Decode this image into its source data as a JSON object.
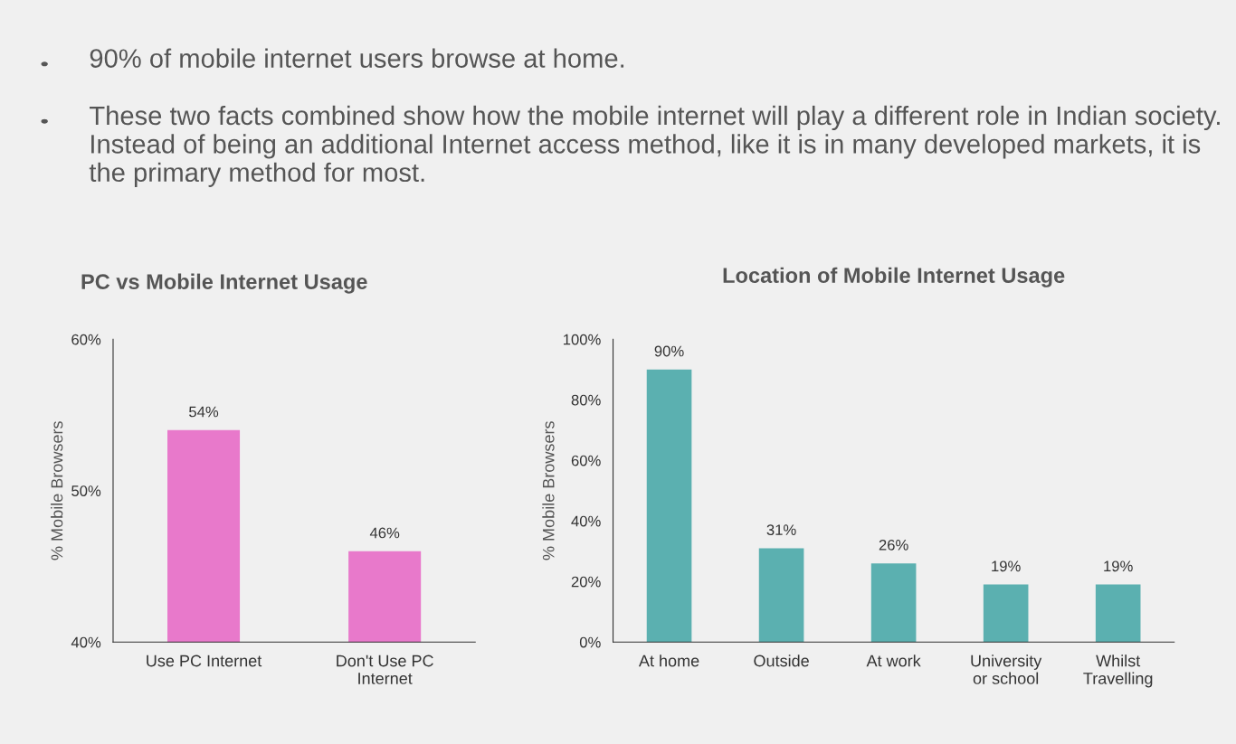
{
  "chart_data": [
    {
      "type": "other",
      "annotations": [
        "90% of mobile internet users browse at home.",
        "These two facts combined show how the mobile internet will play a different role in Indian society. Instead of being an additional Internet access method, like it is in many developed markets, it is the primary method for most."
      ]
    },
    {
      "type": "bar",
      "title": "PC vs Mobile Internet Usage",
      "ylabel": "% Mobile Browsers",
      "categories": [
        "Use PC Internet",
        "Don't Use PC\nInternet"
      ],
      "values": [
        54,
        46
      ],
      "color": "#e879cb",
      "value_labels": [
        "54%",
        "46%"
      ],
      "ylim": [
        40,
        60
      ],
      "yticks": [
        {
          "value": 40,
          "label": "40%"
        },
        {
          "value": 50,
          "label": "50%"
        },
        {
          "value": 60,
          "label": "60%"
        }
      ],
      "grid": false,
      "legend": false
    },
    {
      "type": "bar",
      "title": "Location of Mobile Internet Usage",
      "ylabel": "% Mobile Browsers",
      "categories": [
        "At home",
        "Outside",
        "At work",
        "University\nor school",
        "Whilst\nTravelling"
      ],
      "values": [
        90,
        31,
        26,
        19,
        19
      ],
      "color": "#5bb0b0",
      "value_labels": [
        "90%",
        "31%",
        "26%",
        "19%",
        "19%"
      ],
      "ylim": [
        0,
        100
      ],
      "yticks": [
        {
          "value": 0,
          "label": "0%"
        },
        {
          "value": 20,
          "label": "20%"
        },
        {
          "value": 40,
          "label": "40%"
        },
        {
          "value": 60,
          "label": "60%"
        },
        {
          "value": 80,
          "label": "80%"
        },
        {
          "value": 100,
          "label": "100%"
        }
      ],
      "grid": false,
      "legend": false
    }
  ]
}
